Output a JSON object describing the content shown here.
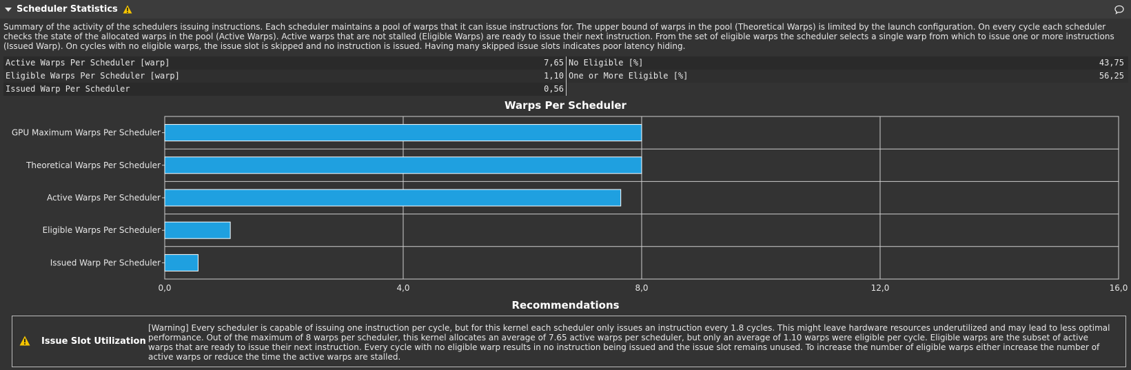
{
  "section": {
    "title": "Scheduler Statistics",
    "description": "Summary of the activity of the schedulers issuing instructions. Each scheduler maintains a pool of warps that it can issue instructions for. The upper bound of warps in the pool (Theoretical Warps) is limited by the launch configuration. On every cycle each scheduler checks the state of the allocated warps in the pool (Active Warps). Active warps that are not stalled (Eligible Warps) are ready to issue their next instruction. From the set of eligible warps the scheduler selects a single warp from which to issue one or more instructions (Issued Warp). On cycles with no eligible warps, the issue slot is skipped and no instruction is issued. Having many skipped issue slots indicates poor latency hiding."
  },
  "metrics": {
    "rows": [
      {
        "left_label": "Active Warps Per Scheduler [warp]",
        "left_value": "7,65",
        "right_label": "No Eligible [%]",
        "right_value": "43,75"
      },
      {
        "left_label": "Eligible Warps Per Scheduler [warp]",
        "left_value": "1,10",
        "right_label": "One or More Eligible [%]",
        "right_value": "56,25"
      },
      {
        "left_label": "Issued Warp Per Scheduler",
        "left_value": "0,56",
        "right_label": "",
        "right_value": ""
      }
    ]
  },
  "chart_data": {
    "type": "bar",
    "orientation": "horizontal",
    "title": "Warps Per Scheduler",
    "categories": [
      "GPU Maximum Warps Per Scheduler",
      "Theoretical Warps Per Scheduler",
      "Active Warps Per Scheduler",
      "Eligible Warps Per Scheduler",
      "Issued Warp Per Scheduler"
    ],
    "values": [
      8,
      8,
      7.65,
      1.1,
      0.56
    ],
    "xticks": [
      "0,0",
      "4,0",
      "8,0",
      "12,0",
      "16,0"
    ],
    "xlim": [
      0,
      16
    ],
    "grid": true,
    "bar_color": "#1fa0e0"
  },
  "recommendations": {
    "title": "Recommendations",
    "items": [
      {
        "icon": "warning-icon",
        "name": "Issue Slot Utilization",
        "text": "[Warning] Every scheduler is capable of issuing one instruction per cycle, but for this kernel each scheduler only issues an instruction every 1.8 cycles. This might leave hardware resources underutilized and may lead to less optimal performance. Out of the maximum of 8 warps per scheduler, this kernel allocates an average of 7.65 active warps per scheduler, but only an average of 1.10 warps were eligible per cycle. Eligible warps are the subset of active warps that are ready to issue their next instruction. Every cycle with no eligible warp results in no instruction being issued and the issue slot remains unused. To increase the number of eligible warps either increase the number of active warps or reduce the time the active warps are stalled."
      }
    ]
  },
  "colors": {
    "warning": "#f5c400",
    "accent": "#1fa0e0",
    "background": "#333333"
  }
}
